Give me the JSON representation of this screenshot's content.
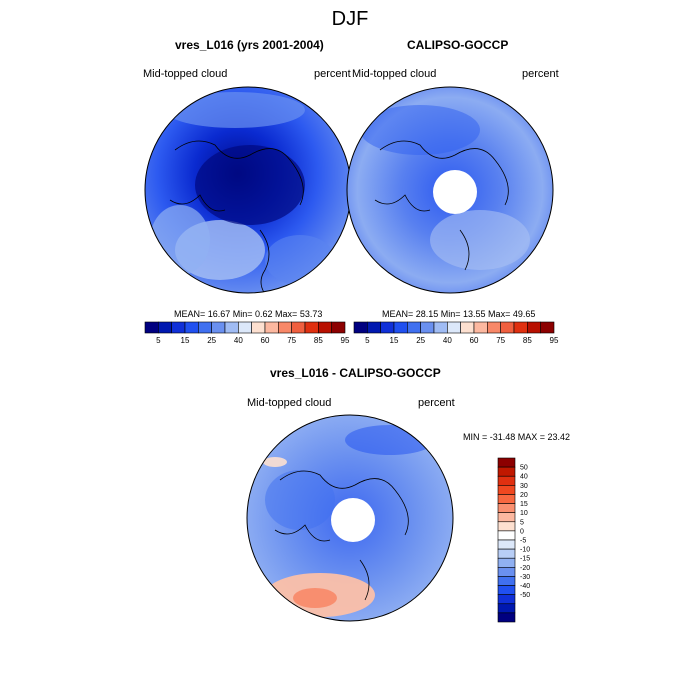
{
  "main_title": "DJF",
  "panels": [
    {
      "title": "vres_L016 (yrs 2001-2004)",
      "left_label": "Mid-topped cloud",
      "right_label": "percent",
      "stats_text": "MEAN=  16.67  Min=   0.62  Max=  53.73",
      "mean": 16.67,
      "min": 0.62,
      "max": 53.73,
      "polar_hole": false
    },
    {
      "title": "CALIPSO-GOCCP",
      "left_label": "Mid-topped cloud",
      "right_label": "percent",
      "stats_text": "MEAN=  28.15  Min=  13.55  Max=  49.65",
      "mean": 28.15,
      "min": 13.55,
      "max": 49.65,
      "polar_hole": true
    },
    {
      "title": "vres_L016 - CALIPSO-GOCCP",
      "left_label": "Mid-topped cloud",
      "right_label": "percent",
      "stats_text": "MIN = -31.48 MAX =  23.42",
      "min": -31.48,
      "max": 23.42,
      "polar_hole": true
    }
  ],
  "colorbar_abs": {
    "colors": [
      "#000080",
      "#0018b0",
      "#1030d8",
      "#2050f0",
      "#4070f0",
      "#6a90f0",
      "#a0bcf4",
      "#dce8fa",
      "#fde0d0",
      "#fcb8a0",
      "#f88868",
      "#f06040",
      "#e03010",
      "#b81000",
      "#8c0000"
    ],
    "labels": [
      "5",
      "15",
      "25",
      "40",
      "60",
      "75",
      "85",
      "95"
    ]
  },
  "colorbar_diff": {
    "colors": [
      "#8c0000",
      "#c01800",
      "#e03010",
      "#f04820",
      "#f86840",
      "#fa9070",
      "#fcb8a0",
      "#fde0d0",
      "#ffffff",
      "#dce8fa",
      "#b8cef6",
      "#90b0f2",
      "#6a90f0",
      "#4070f0",
      "#2050f0",
      "#1030d8",
      "#0018b0",
      "#000080"
    ],
    "labels": [
      "50",
      "40",
      "30",
      "20",
      "15",
      "10",
      "5",
      "0",
      "-5",
      "-10",
      "-15",
      "-20",
      "-30",
      "-40",
      "-50"
    ]
  },
  "chart_data": [
    {
      "type": "heatmap",
      "title": "vres_L016 (yrs 2001-2004)",
      "variable": "Mid-topped cloud",
      "units": "percent",
      "projection": "north polar stereographic",
      "season": "DJF",
      "mean": 16.67,
      "min": 0.62,
      "max": 53.73,
      "contour_levels": [
        5,
        10,
        15,
        20,
        25,
        30,
        40,
        50,
        60,
        70,
        75,
        80,
        85,
        90,
        95
      ]
    },
    {
      "type": "heatmap",
      "title": "CALIPSO-GOCCP",
      "variable": "Mid-topped cloud",
      "units": "percent",
      "projection": "north polar stereographic",
      "season": "DJF",
      "mean": 28.15,
      "min": 13.55,
      "max": 49.65,
      "contour_levels": [
        5,
        10,
        15,
        20,
        25,
        30,
        40,
        50,
        60,
        70,
        75,
        80,
        85,
        90,
        95
      ]
    },
    {
      "type": "heatmap",
      "title": "vres_L016 - CALIPSO-GOCCP",
      "variable": "Mid-topped cloud",
      "units": "percent",
      "projection": "north polar stereographic",
      "season": "DJF",
      "min": -31.48,
      "max": 23.42,
      "contour_levels": [
        -50,
        -40,
        -30,
        -20,
        -15,
        -10,
        -5,
        0,
        5,
        10,
        15,
        20,
        30,
        40,
        50
      ]
    }
  ]
}
